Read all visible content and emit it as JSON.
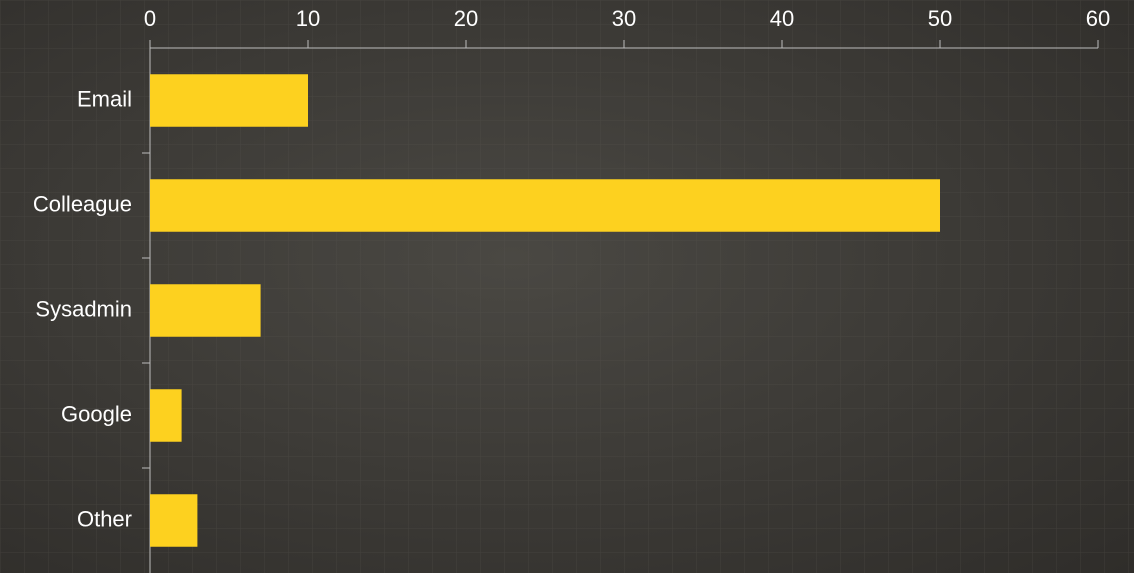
{
  "chart_data": {
    "type": "bar",
    "orientation": "horizontal",
    "categories": [
      "Email",
      "Colleague",
      "Sysadmin",
      "Google",
      "Other"
    ],
    "values": [
      10,
      50,
      7,
      2,
      3
    ],
    "color": "#fdd11f",
    "xlim": [
      0,
      60
    ],
    "xticks": [
      0,
      10,
      20,
      30,
      40,
      50,
      60
    ]
  }
}
